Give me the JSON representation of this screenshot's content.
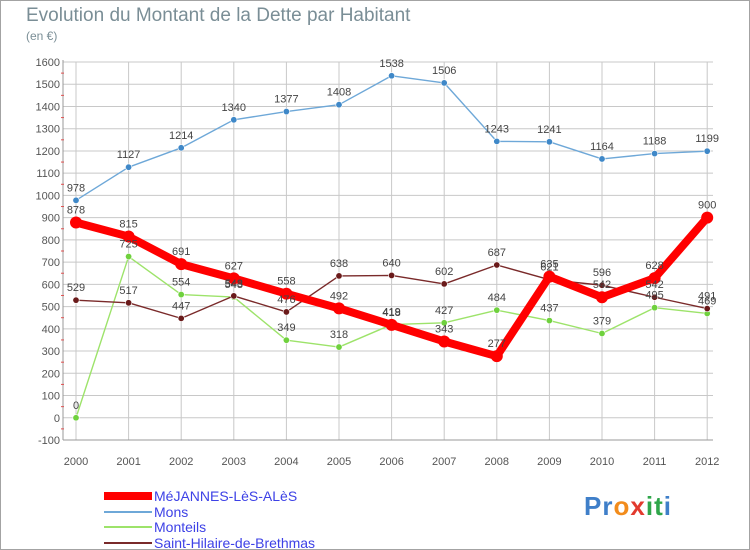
{
  "colors": {
    "axis_text": "#555555",
    "grid": "#c8c8c8",
    "title": "#7a8e96",
    "legend_text": "#3d41e6"
  },
  "brand": {
    "letters": [
      {
        "char": "P",
        "color": "#3f7fc9"
      },
      {
        "char": "r",
        "color": "#3f7fc9"
      },
      {
        "char": "o",
        "color": "#f28c1c"
      },
      {
        "char": "x",
        "color": "#e23a2e"
      },
      {
        "char": "i",
        "color": "#2fa64a"
      },
      {
        "char": "t",
        "color": "#2fa64a"
      },
      {
        "char": "i",
        "color": "#3f7fc9"
      }
    ]
  },
  "chart_data": {
    "type": "line",
    "title": "Evolution du Montant de la Dette par Habitant",
    "subtitle": "(en €)",
    "categories": [
      "2000",
      "2001",
      "2002",
      "2003",
      "2004",
      "2005",
      "2006",
      "2007",
      "2008",
      "2009",
      "2010",
      "2011",
      "2012"
    ],
    "ylim": [
      -100,
      1600
    ],
    "yticks": [
      "-100",
      "0",
      "100",
      "200",
      "300",
      "400",
      "500",
      "600",
      "700",
      "800",
      "900",
      "1000",
      "1100",
      "1200",
      "1300",
      "1400",
      "1500",
      "1600"
    ],
    "grid": true,
    "legend_position": "bottom-left",
    "series": [
      {
        "name": "MéJANNES-LèS-ALèS",
        "color": "#ff0000",
        "marker_color": "#ff0000",
        "emphasis": true,
        "values": [
          878,
          815,
          691,
          627,
          558,
          492,
          418,
          343,
          277,
          635,
          542,
          628,
          900
        ]
      },
      {
        "name": "Mons",
        "color": "#6ea8d8",
        "marker_color": "#3f88c8",
        "emphasis": false,
        "values": [
          978,
          1127,
          1214,
          1340,
          1377,
          1408,
          1538,
          1506,
          1243,
          1241,
          1164,
          1188,
          1199
        ]
      },
      {
        "name": "Monteils",
        "color": "#9de36a",
        "marker_color": "#6fd13d",
        "emphasis": false,
        "values": [
          0,
          725,
          554,
          543,
          349,
          318,
          419,
          427,
          484,
          437,
          379,
          495,
          469
        ]
      },
      {
        "name": "Saint-Hilaire-de-Brethmas",
        "color": "#7a2a2a",
        "marker_color": "#6a1a1a",
        "emphasis": false,
        "values": [
          529,
          517,
          447,
          548,
          476,
          638,
          640,
          602,
          687,
          621,
          596,
          542,
          491
        ]
      }
    ]
  }
}
